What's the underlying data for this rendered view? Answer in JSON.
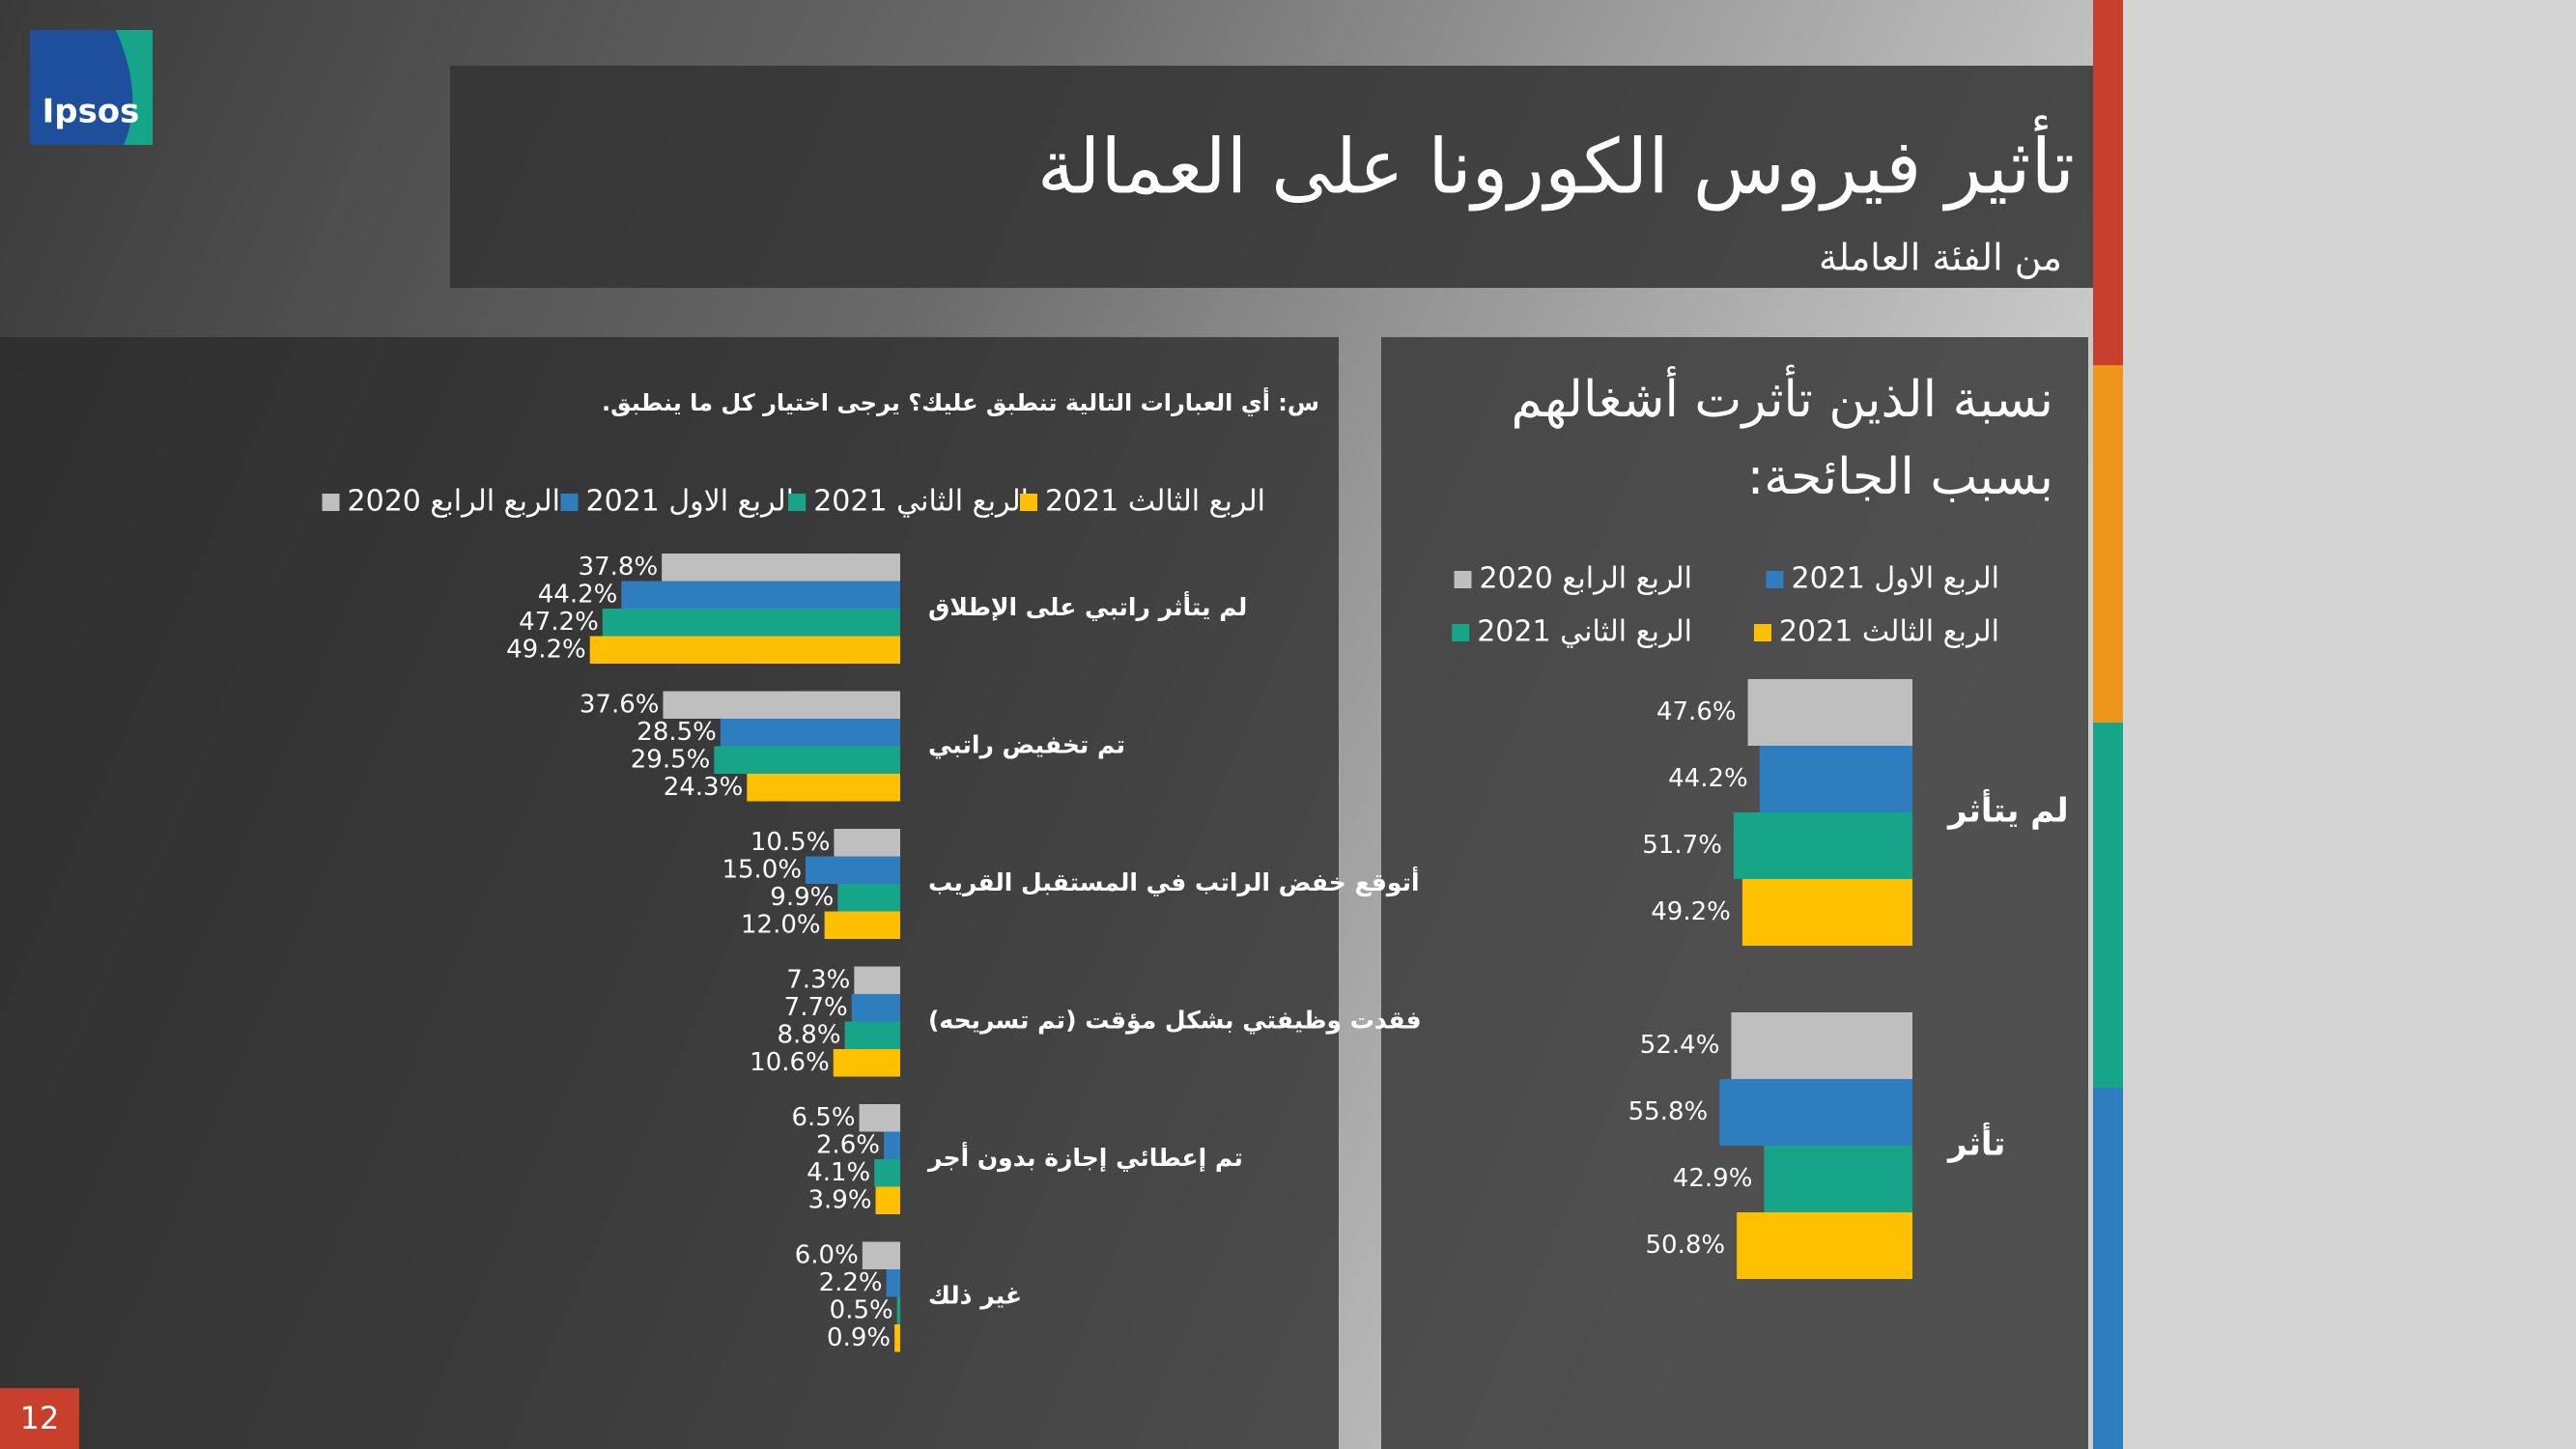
{
  "slide": {
    "logo": "Ipsos",
    "title": "تأثير فيروس الكورونا على العمالة",
    "subtitle": "من الفئة العاملة",
    "page_number": "12"
  },
  "chart_data": [
    {
      "type": "hbar",
      "title": [
        "نسبة الذين تأثرت أشغالهم",
        "بسبب الجائحة:"
      ],
      "categories": [
        "لم يتأثر",
        "تأثر"
      ],
      "series": [
        {
          "name": "الربع الرابع 2020",
          "color": "#bfbfbf",
          "values": [
            47.6,
            52.4
          ],
          "value_labels": [
            "47.6%",
            "52.4%"
          ]
        },
        {
          "name": "الربع الاول 2021",
          "color": "#2e7dbf",
          "values": [
            44.2,
            55.8
          ],
          "value_labels": [
            "44.2%",
            "55.8%"
          ]
        },
        {
          "name": "الربع الثاني 2021",
          "color": "#17a589",
          "values": [
            51.7,
            42.9
          ],
          "value_labels": [
            "51.7%",
            "42.9%"
          ]
        },
        {
          "name": "الربع الثالث 2021",
          "color": "#ffc000",
          "values": [
            49.2,
            50.8
          ],
          "value_labels": [
            "49.2%",
            "50.8%"
          ]
        }
      ]
    },
    {
      "type": "hbar",
      "title": "س: أي العبارات التالية تنطبق عليك؟ يرجى اختيار كل ما ينطبق.",
      "categories": [
        "لم يتأثر راتبي على الإطلاق",
        "تم تخفيض راتبي",
        "أتوقع خفض الراتب في المستقبل القريب",
        "فقدت وظيفتي بشكل مؤقت (تم تسريحه)",
        "تم إعطائي إجازة بدون أجر",
        "غير ذلك"
      ],
      "series": [
        {
          "name": "الربع الرابع 2020",
          "color": "#bfbfbf",
          "values": [
            37.8,
            37.6,
            10.5,
            7.3,
            6.5,
            6.0
          ],
          "value_labels": [
            "37.8%",
            "37.6%",
            "10.5%",
            "7.3%",
            "6.5%",
            "6.0%"
          ]
        },
        {
          "name": "الربع الاول 2021",
          "color": "#2e7dbf",
          "values": [
            44.2,
            28.5,
            15.0,
            7.7,
            2.6,
            2.2
          ],
          "value_labels": [
            "44.2%",
            "28.5%",
            "15.0%",
            "7.7%",
            "2.6%",
            "2.2%"
          ]
        },
        {
          "name": "الربع الثاني 2021",
          "color": "#17a589",
          "values": [
            47.2,
            29.5,
            9.9,
            8.8,
            4.1,
            0.5
          ],
          "value_labels": [
            "47.2%",
            "29.5%",
            "9.9%",
            "8.8%",
            "4.1%",
            "0.5%"
          ]
        },
        {
          "name": "الربع الثالث 2021",
          "color": "#ffc000",
          "values": [
            49.2,
            24.3,
            12.0,
            10.6,
            3.9,
            0.9
          ],
          "value_labels": [
            "49.2%",
            "24.3%",
            "12.0%",
            "10.6%",
            "3.9%",
            "0.9%"
          ]
        }
      ]
    }
  ]
}
